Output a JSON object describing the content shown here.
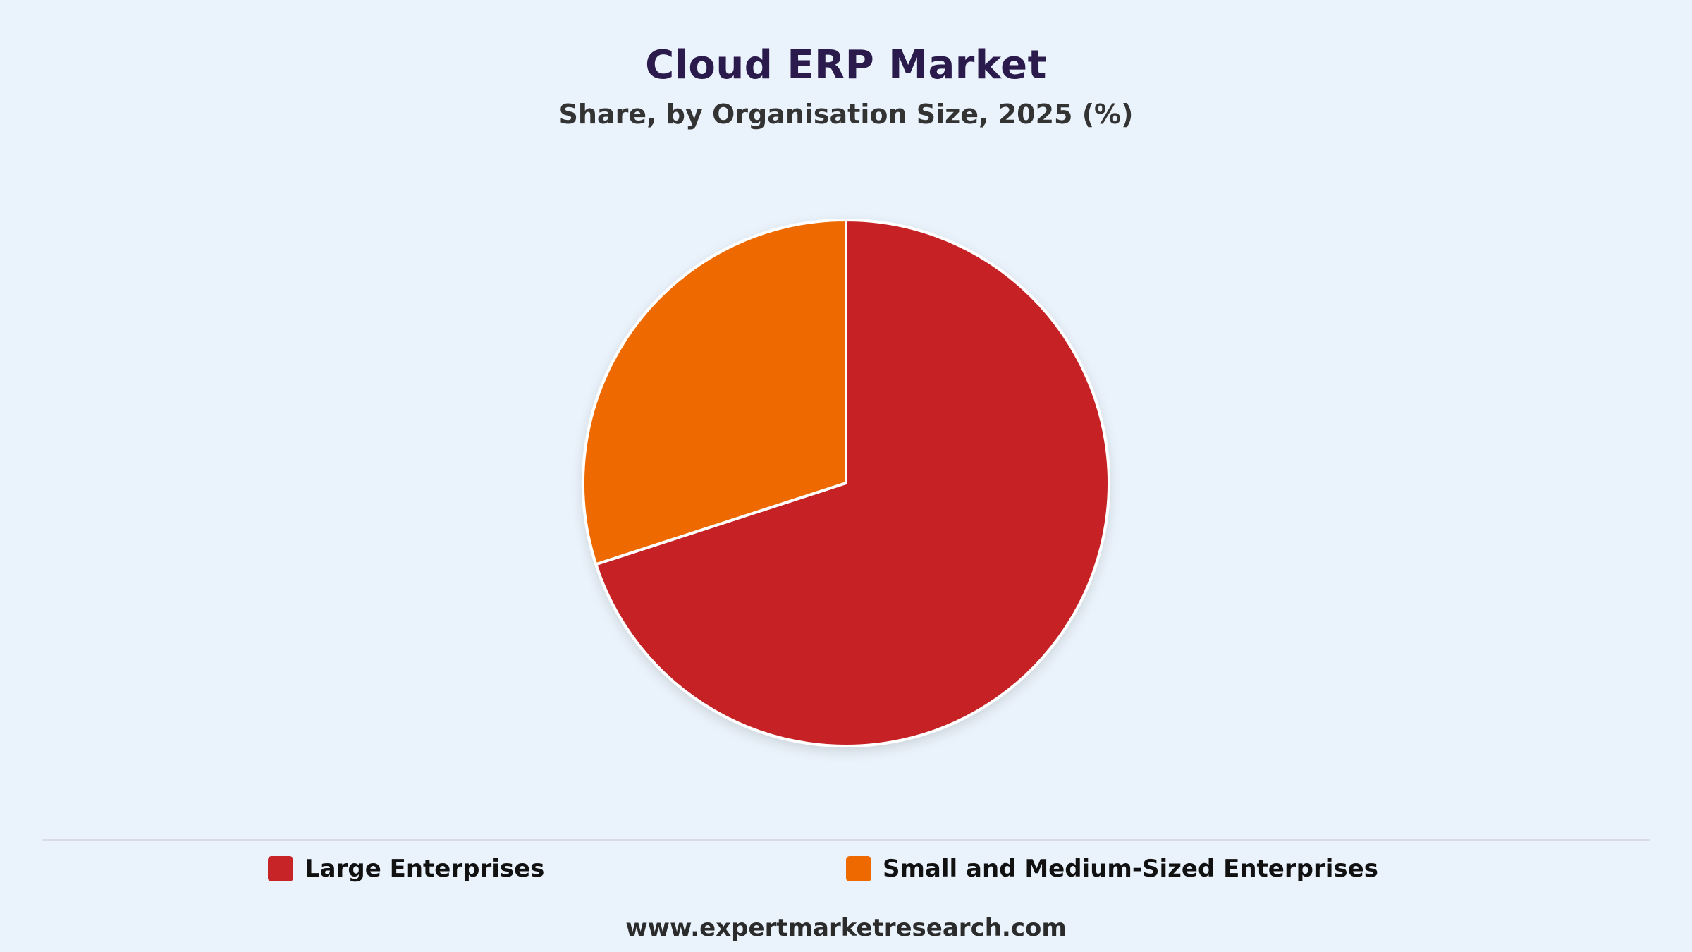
{
  "header": {
    "title": "Cloud ERP Market",
    "subtitle": "Share, by Organisation Size, 2025 (%)"
  },
  "chart_data": {
    "type": "pie",
    "title": "Cloud ERP Market",
    "subtitle": "Share, by Organisation Size, 2025 (%)",
    "categories": [
      "Large Enterprises",
      "Small and Medium-Sized Enterprises"
    ],
    "values": [
      70.0,
      30.0
    ],
    "colors": [
      "#c62426",
      "#ee6a00"
    ],
    "start_angle": "12 o'clock",
    "direction": "clockwise",
    "legend_position": "bottom"
  },
  "legend": {
    "items": [
      {
        "label": "Large Enterprises",
        "color": "#c62426"
      },
      {
        "label": "Small and Medium-Sized Enterprises",
        "color": "#ee6a00"
      }
    ]
  },
  "footer": {
    "website": "www.expertmarketresearch.com"
  }
}
